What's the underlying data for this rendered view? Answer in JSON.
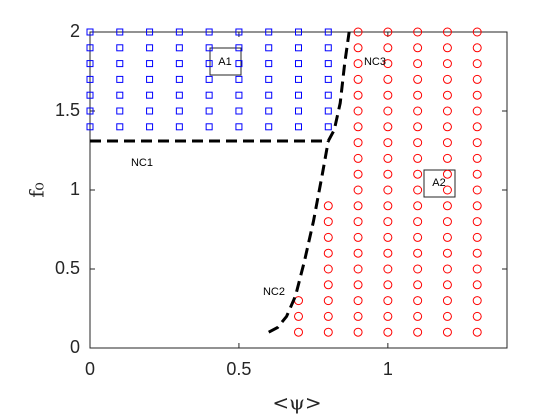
{
  "chart_data": {
    "type": "scatter",
    "xlabel": "<ψ>",
    "ylabel": "f₀",
    "xlim": [
      0,
      1.4
    ],
    "ylim": [
      0,
      2
    ],
    "xticks": [
      0,
      0.5,
      1
    ],
    "yticks": [
      0,
      0.5,
      1,
      1.5,
      2
    ],
    "series": [
      {
        "color": "#0000ff",
        "marker": "square",
        "x": [
          0,
          0.1,
          0.2,
          0.3,
          0.4,
          0.5,
          0.6,
          0.7,
          0.8,
          0,
          0.1,
          0.2,
          0.3,
          0.4,
          0.5,
          0.6,
          0.7,
          0.8,
          0,
          0.1,
          0.2,
          0.3,
          0.4,
          0.5,
          0.6,
          0.7,
          0.8,
          0,
          0.1,
          0.2,
          0.3,
          0.4,
          0.5,
          0.6,
          0.7,
          0.8,
          0,
          0.1,
          0.2,
          0.3,
          0.4,
          0.5,
          0.6,
          0.7,
          0.8,
          0,
          0.1,
          0.2,
          0.3,
          0.4,
          0.5,
          0.6,
          0.7,
          0.8,
          0,
          0.1,
          0.2,
          0.3,
          0.4,
          0.5,
          0.6,
          0.7,
          0.8
        ],
        "y": [
          1.4,
          1.4,
          1.4,
          1.4,
          1.4,
          1.4,
          1.4,
          1.4,
          1.4,
          1.5,
          1.5,
          1.5,
          1.5,
          1.5,
          1.5,
          1.5,
          1.5,
          1.5,
          1.6,
          1.6,
          1.6,
          1.6,
          1.6,
          1.6,
          1.6,
          1.6,
          1.6,
          1.7,
          1.7,
          1.7,
          1.7,
          1.7,
          1.7,
          1.7,
          1.7,
          1.7,
          1.8,
          1.8,
          1.8,
          1.8,
          1.8,
          1.8,
          1.8,
          1.8,
          1.8,
          1.9,
          1.9,
          1.9,
          1.9,
          1.9,
          1.9,
          1.9,
          1.9,
          1.9,
          2,
          2,
          2,
          2,
          2,
          2,
          2,
          2,
          2
        ]
      },
      {
        "color": "#ff0000",
        "marker": "circle",
        "x": [
          0.7,
          0.7,
          0.7,
          0.8,
          0.8,
          0.8,
          0.8,
          0.8,
          0.8,
          0.8,
          0.8,
          0.8,
          0.9,
          0.9,
          0.9,
          0.9,
          0.9,
          0.9,
          0.9,
          0.9,
          0.9,
          0.9,
          0.9,
          0.9,
          0.9,
          0.9,
          0.9,
          0.9,
          0.9,
          0.9,
          0.9,
          0.9,
          1,
          1,
          1,
          1,
          1,
          1,
          1,
          1,
          1,
          1,
          1,
          1,
          1,
          1,
          1,
          1,
          1,
          1,
          1,
          1,
          1.1,
          1.1,
          1.1,
          1.1,
          1.1,
          1.1,
          1.1,
          1.1,
          1.1,
          1.1,
          1.1,
          1.1,
          1.1,
          1.1,
          1.1,
          1.1,
          1.1,
          1.1,
          1.1,
          1.1,
          1.2,
          1.2,
          1.2,
          1.2,
          1.2,
          1.2,
          1.2,
          1.2,
          1.2,
          1.2,
          1.2,
          1.2,
          1.2,
          1.2,
          1.2,
          1.2,
          1.2,
          1.2,
          1.2,
          1.2,
          1.3,
          1.3,
          1.3,
          1.3,
          1.3,
          1.3,
          1.3,
          1.3,
          1.3,
          1.3,
          1.3,
          1.3,
          1.3,
          1.3,
          1.3,
          1.3,
          1.3,
          1.3,
          1.3,
          1.3
        ],
        "y": [
          0.1,
          0.2,
          0.3,
          0.1,
          0.2,
          0.3,
          0.4,
          0.5,
          0.6,
          0.7,
          0.8,
          0.9,
          0.1,
          0.2,
          0.3,
          0.4,
          0.5,
          0.6,
          0.7,
          0.8,
          0.9,
          1,
          1.1,
          1.2,
          1.3,
          1.4,
          1.5,
          1.6,
          1.7,
          1.8,
          1.9,
          2,
          0.1,
          0.2,
          0.3,
          0.4,
          0.5,
          0.6,
          0.7,
          0.8,
          0.9,
          1,
          1.1,
          1.2,
          1.3,
          1.4,
          1.5,
          1.6,
          1.7,
          1.8,
          1.9,
          2,
          0.1,
          0.2,
          0.3,
          0.4,
          0.5,
          0.6,
          0.7,
          0.8,
          0.9,
          1,
          1.1,
          1.2,
          1.3,
          1.4,
          1.5,
          1.6,
          1.7,
          1.8,
          1.9,
          2,
          0.1,
          0.2,
          0.3,
          0.4,
          0.5,
          0.6,
          0.7,
          0.8,
          0.9,
          1,
          1.1,
          1.2,
          1.3,
          1.4,
          1.5,
          1.6,
          1.7,
          1.8,
          1.9,
          2,
          0.1,
          0.2,
          0.3,
          0.4,
          0.5,
          0.6,
          0.7,
          0.8,
          0.9,
          1,
          1.1,
          1.2,
          1.3,
          1.4,
          1.5,
          1.6,
          1.7,
          1.8,
          1.9,
          2
        ]
      }
    ],
    "curves": [
      {
        "x": [
          0,
          0.8,
          0.82,
          0.84,
          0.855,
          0.87
        ],
        "y": [
          1.31,
          1.31,
          1.38,
          1.55,
          1.8,
          2
        ]
      },
      {
        "x": [
          0.6,
          0.63,
          0.66,
          0.69,
          0.72,
          0.75,
          0.78,
          0.8
        ],
        "y": [
          0.1,
          0.13,
          0.2,
          0.33,
          0.55,
          0.8,
          1.1,
          1.31
        ]
      }
    ],
    "annotations": [
      "NC1",
      "NC2",
      "NC3",
      "A1",
      "A2"
    ]
  }
}
